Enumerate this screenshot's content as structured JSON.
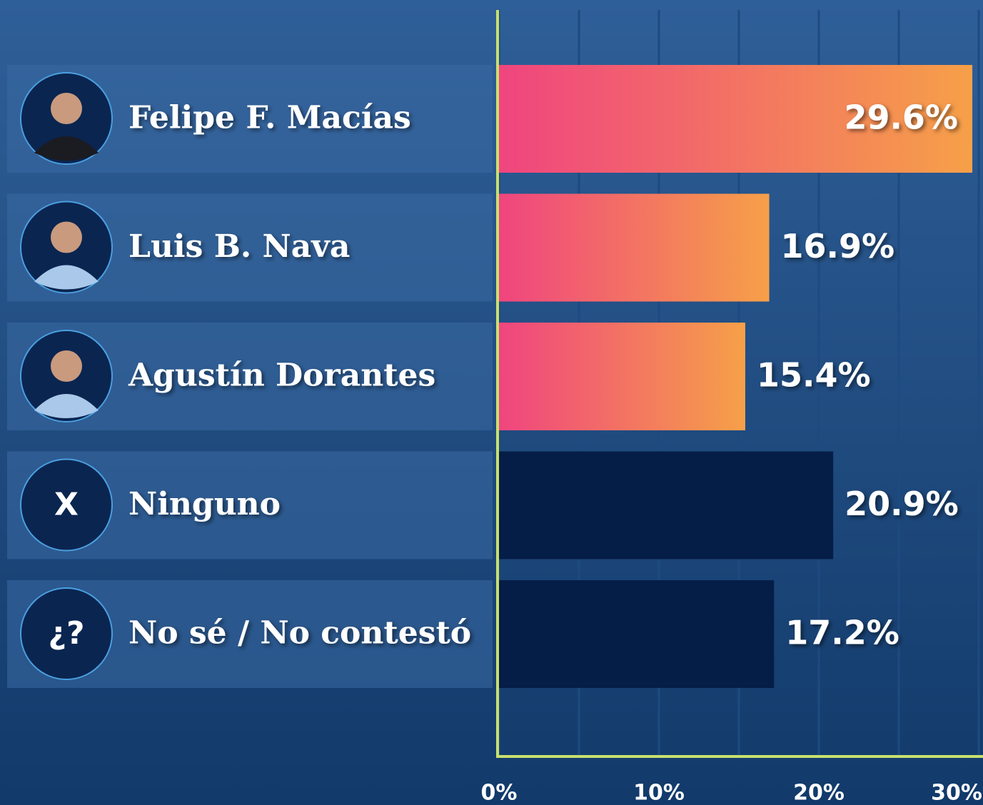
{
  "chart_data": {
    "type": "bar",
    "orientation": "horizontal",
    "categories": [
      "Felipe F. Macías",
      "Luis B. Nava",
      "Agustín Dorantes",
      "Ninguno",
      "No sé / No contestó"
    ],
    "icon_labels": [
      null,
      null,
      null,
      "X",
      "¿?"
    ],
    "values": [
      29.6,
      16.9,
      15.4,
      20.9,
      17.2
    ],
    "value_labels": [
      "29.6%",
      "16.9%",
      "15.4%",
      "20.9%",
      "17.2%"
    ],
    "colors": [
      "gradient",
      "gradient",
      "gradient",
      "#051e47",
      "#051e47"
    ],
    "gradient": [
      "#f0457f",
      "#f6a048"
    ],
    "xlim": [
      0,
      30
    ],
    "xticks": [
      {
        "value": 0,
        "label": "0%"
      },
      {
        "value": 10,
        "label": "10%"
      },
      {
        "value": 20,
        "label": "20%"
      },
      {
        "value": 30,
        "label": "30%"
      }
    ],
    "xminor": [
      5,
      15,
      25
    ],
    "grid": true
  }
}
